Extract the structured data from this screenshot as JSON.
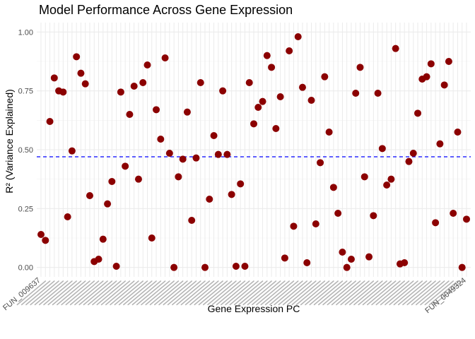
{
  "chart_data": {
    "type": "scatter",
    "title": "Model Performance Across Gene Expression",
    "xlabel": "Gene Expression PC",
    "ylabel": "R² (Variance Explained)",
    "ylim": [
      -0.04,
      1.04
    ],
    "y_ticks": [
      "0.00",
      "0.25",
      "0.50",
      "0.75",
      "1.00"
    ],
    "y_tick_values": [
      0,
      0.25,
      0.5,
      0.75,
      1.0
    ],
    "first_x_label": "FUN_009637",
    "last_x_label": "FUN_0049324",
    "hline": 0.47,
    "grid": true,
    "point_color": "#8b0000",
    "hline_color": "#0000ff",
    "values": [
      0.14,
      0.115,
      0.62,
      0.805,
      0.75,
      0.745,
      0.215,
      0.495,
      0.895,
      0.825,
      0.78,
      0.305,
      0.025,
      0.035,
      0.12,
      0.27,
      0.365,
      0.005,
      0.745,
      0.43,
      0.65,
      0.77,
      0.375,
      0.785,
      0.86,
      0.125,
      0.67,
      0.545,
      0.89,
      0.485,
      0.0,
      0.385,
      0.46,
      0.66,
      0.2,
      0.465,
      0.785,
      0.0,
      0.29,
      0.56,
      0.48,
      0.75,
      0.48,
      0.31,
      0.005,
      0.355,
      0.005,
      0.785,
      0.61,
      0.68,
      0.705,
      0.9,
      0.85,
      0.59,
      0.725,
      0.04,
      0.92,
      0.175,
      0.98,
      0.765,
      0.02,
      0.71,
      0.185,
      0.445,
      0.81,
      0.575,
      0.34,
      0.23,
      0.065,
      0.0,
      0.035,
      0.74,
      0.85,
      0.385,
      0.045,
      0.22,
      0.74,
      0.505,
      0.35,
      0.375,
      0.93,
      0.015,
      0.02,
      0.45,
      0.485,
      0.655,
      0.8,
      0.81,
      0.865,
      0.19,
      0.525,
      0.775,
      0.875,
      0.23,
      0.575,
      0.0,
      0.205
    ]
  }
}
